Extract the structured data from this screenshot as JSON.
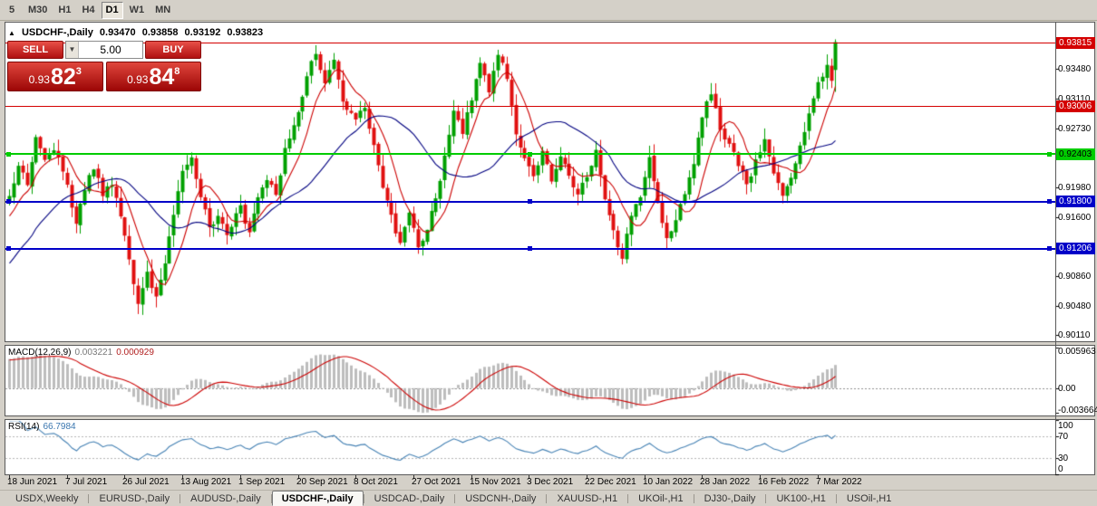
{
  "toolbar": {
    "timeframes": [
      {
        "label": "5",
        "active": false
      },
      {
        "label": "M30",
        "active": false
      },
      {
        "label": "H1",
        "active": false
      },
      {
        "label": "H4",
        "active": false
      },
      {
        "label": "D1",
        "active": true
      },
      {
        "label": "W1",
        "active": false
      },
      {
        "label": "MN",
        "active": false
      }
    ]
  },
  "header": {
    "symbol": "USDCHF-,Daily",
    "open": "0.93470",
    "high": "0.93858",
    "low": "0.93192",
    "close": "0.93823"
  },
  "trade_panel": {
    "collapse_icon": "▲",
    "sell_label": "SELL",
    "buy_label": "BUY",
    "volume": "5.00",
    "volume_dropdown_icon": "▼",
    "sell_price": {
      "prefix": "0.93",
      "big": "82",
      "sup": "3"
    },
    "buy_price": {
      "prefix": "0.93",
      "big": "84",
      "sup": "8"
    }
  },
  "chart_data": {
    "type": "candlestick",
    "title": "USDCHF-,Daily",
    "price_axis": {
      "min": 0.9003,
      "max": 0.9407,
      "ticks": [
        0.9348,
        0.9311,
        0.9273,
        0.9198,
        0.916,
        0.9086,
        0.9048,
        0.9011
      ]
    },
    "levels": [
      {
        "price": 0.93815,
        "color": "#d40000",
        "thickness": 1,
        "text_color": "#ffffff",
        "handles": false
      },
      {
        "price": 0.93006,
        "color": "#d40000",
        "thickness": 1,
        "text_color": "#ffffff",
        "handles": false
      },
      {
        "price": 0.92403,
        "color": "#00cc00",
        "thickness": 2,
        "text_color": "#000000",
        "handles": true
      },
      {
        "price": 0.918,
        "color": "#0000c8",
        "thickness": 2,
        "text_color": "#ffffff",
        "handles": true
      },
      {
        "price": 0.91206,
        "color": "#0000c8",
        "thickness": 2,
        "text_color": "#ffffff",
        "handles": true
      }
    ],
    "x_axis_dates": [
      "18 Jun 2021",
      "7 Jul 2021",
      "26 Jul 2021",
      "13 Aug 2021",
      "1 Sep 2021",
      "20 Sep 2021",
      "8 Oct 2021",
      "27 Oct 2021",
      "15 Nov 2021",
      "3 Dec 2021",
      "22 Dec 2021",
      "10 Jan 2022",
      "28 Jan 2022",
      "16 Feb 2022",
      "7 Mar 2022"
    ],
    "bars_per_label": 13,
    "bar_count": 187,
    "last_bar": {
      "open": 0.9347,
      "high": 0.93858,
      "low": 0.93192,
      "close": 0.93823
    },
    "close_keyframes": [
      [
        0,
        0.9185
      ],
      [
        2,
        0.9225
      ],
      [
        4,
        0.9205
      ],
      [
        6,
        0.9262
      ],
      [
        8,
        0.923
      ],
      [
        10,
        0.9248
      ],
      [
        13,
        0.92
      ],
      [
        15,
        0.915
      ],
      [
        17,
        0.9198
      ],
      [
        19,
        0.9225
      ],
      [
        21,
        0.9187
      ],
      [
        23,
        0.9205
      ],
      [
        25,
        0.916
      ],
      [
        27,
        0.9105
      ],
      [
        29,
        0.9048
      ],
      [
        31,
        0.9088
      ],
      [
        33,
        0.9058
      ],
      [
        35,
        0.9105
      ],
      [
        37,
        0.916
      ],
      [
        39,
        0.9222
      ],
      [
        41,
        0.924
      ],
      [
        43,
        0.9185
      ],
      [
        45,
        0.9148
      ],
      [
        47,
        0.9162
      ],
      [
        49,
        0.914
      ],
      [
        52,
        0.9172
      ],
      [
        54,
        0.9138
      ],
      [
        56,
        0.9188
      ],
      [
        58,
        0.921
      ],
      [
        60,
        0.9185
      ],
      [
        62,
        0.925
      ],
      [
        65,
        0.9292
      ],
      [
        67,
        0.934
      ],
      [
        69,
        0.9368
      ],
      [
        71,
        0.933
      ],
      [
        73,
        0.9362
      ],
      [
        75,
        0.9308
      ],
      [
        78,
        0.9282
      ],
      [
        80,
        0.93
      ],
      [
        82,
        0.925
      ],
      [
        84,
        0.92
      ],
      [
        86,
        0.916
      ],
      [
        88,
        0.9128
      ],
      [
        90,
        0.9165
      ],
      [
        92,
        0.912
      ],
      [
        94,
        0.9148
      ],
      [
        96,
        0.9185
      ],
      [
        98,
        0.9235
      ],
      [
        100,
        0.9298
      ],
      [
        102,
        0.927
      ],
      [
        104,
        0.9312
      ],
      [
        106,
        0.9355
      ],
      [
        108,
        0.9322
      ],
      [
        110,
        0.9368
      ],
      [
        112,
        0.934
      ],
      [
        114,
        0.9262
      ],
      [
        116,
        0.9235
      ],
      [
        118,
        0.9215
      ],
      [
        120,
        0.9242
      ],
      [
        122,
        0.9205
      ],
      [
        124,
        0.9238
      ],
      [
        126,
        0.9212
      ],
      [
        128,
        0.9188
      ],
      [
        130,
        0.9215
      ],
      [
        132,
        0.9242
      ],
      [
        134,
        0.918
      ],
      [
        136,
        0.914
      ],
      [
        138,
        0.9112
      ],
      [
        140,
        0.9162
      ],
      [
        142,
        0.919
      ],
      [
        144,
        0.9238
      ],
      [
        146,
        0.918
      ],
      [
        148,
        0.9132
      ],
      [
        150,
        0.916
      ],
      [
        152,
        0.9188
      ],
      [
        154,
        0.9228
      ],
      [
        156,
        0.9288
      ],
      [
        158,
        0.932
      ],
      [
        160,
        0.9275
      ],
      [
        162,
        0.925
      ],
      [
        164,
        0.9228
      ],
      [
        166,
        0.92
      ],
      [
        168,
        0.9232
      ],
      [
        170,
        0.9255
      ],
      [
        172,
        0.9215
      ],
      [
        174,
        0.9185
      ],
      [
        176,
        0.9212
      ],
      [
        178,
        0.925
      ],
      [
        180,
        0.9292
      ],
      [
        182,
        0.933
      ],
      [
        184,
        0.9355
      ],
      [
        185,
        0.9336
      ],
      [
        186,
        0.9382
      ]
    ],
    "indicators": {
      "macd": {
        "name": "MACD(12,26,9)",
        "value_main": "0.003221",
        "value_signal": "0.000929",
        "scale_labels": [
          "0.005963",
          "0.00",
          "-0.003664"
        ],
        "scale_values": [
          0.005963,
          0,
          -0.003664
        ],
        "range": [
          -0.004,
          0.0062
        ]
      },
      "rsi": {
        "name": "RSI(14)",
        "value": "66.7984",
        "scale_labels": [
          100,
          70,
          30,
          0
        ],
        "guides": [
          70,
          30
        ]
      }
    },
    "colors": {
      "up": "#00a000",
      "down": "#e01010",
      "ma_fast": "#cc0000",
      "ma_slow": "#000080",
      "macd_hist": "#bdbdbd",
      "macd_signal": "#cc0000",
      "rsi_line": "#4682b4"
    }
  },
  "tab_bar": {
    "tabs": [
      {
        "label": "USDX,Weekly",
        "active": false
      },
      {
        "label": "EURUSD-,Daily",
        "active": false
      },
      {
        "label": "AUDUSD-,Daily",
        "active": false
      },
      {
        "label": "USDCHF-,Daily",
        "active": true
      },
      {
        "label": "USDCAD-,Daily",
        "active": false
      },
      {
        "label": "USDCNH-,Daily",
        "active": false
      },
      {
        "label": "XAUUSD-,H1",
        "active": false
      },
      {
        "label": "UKOil-,H1",
        "active": false
      },
      {
        "label": "DJ30-,Daily",
        "active": false
      },
      {
        "label": "UK100-,H1",
        "active": false
      },
      {
        "label": "USOil-,H1",
        "active": false
      }
    ]
  }
}
